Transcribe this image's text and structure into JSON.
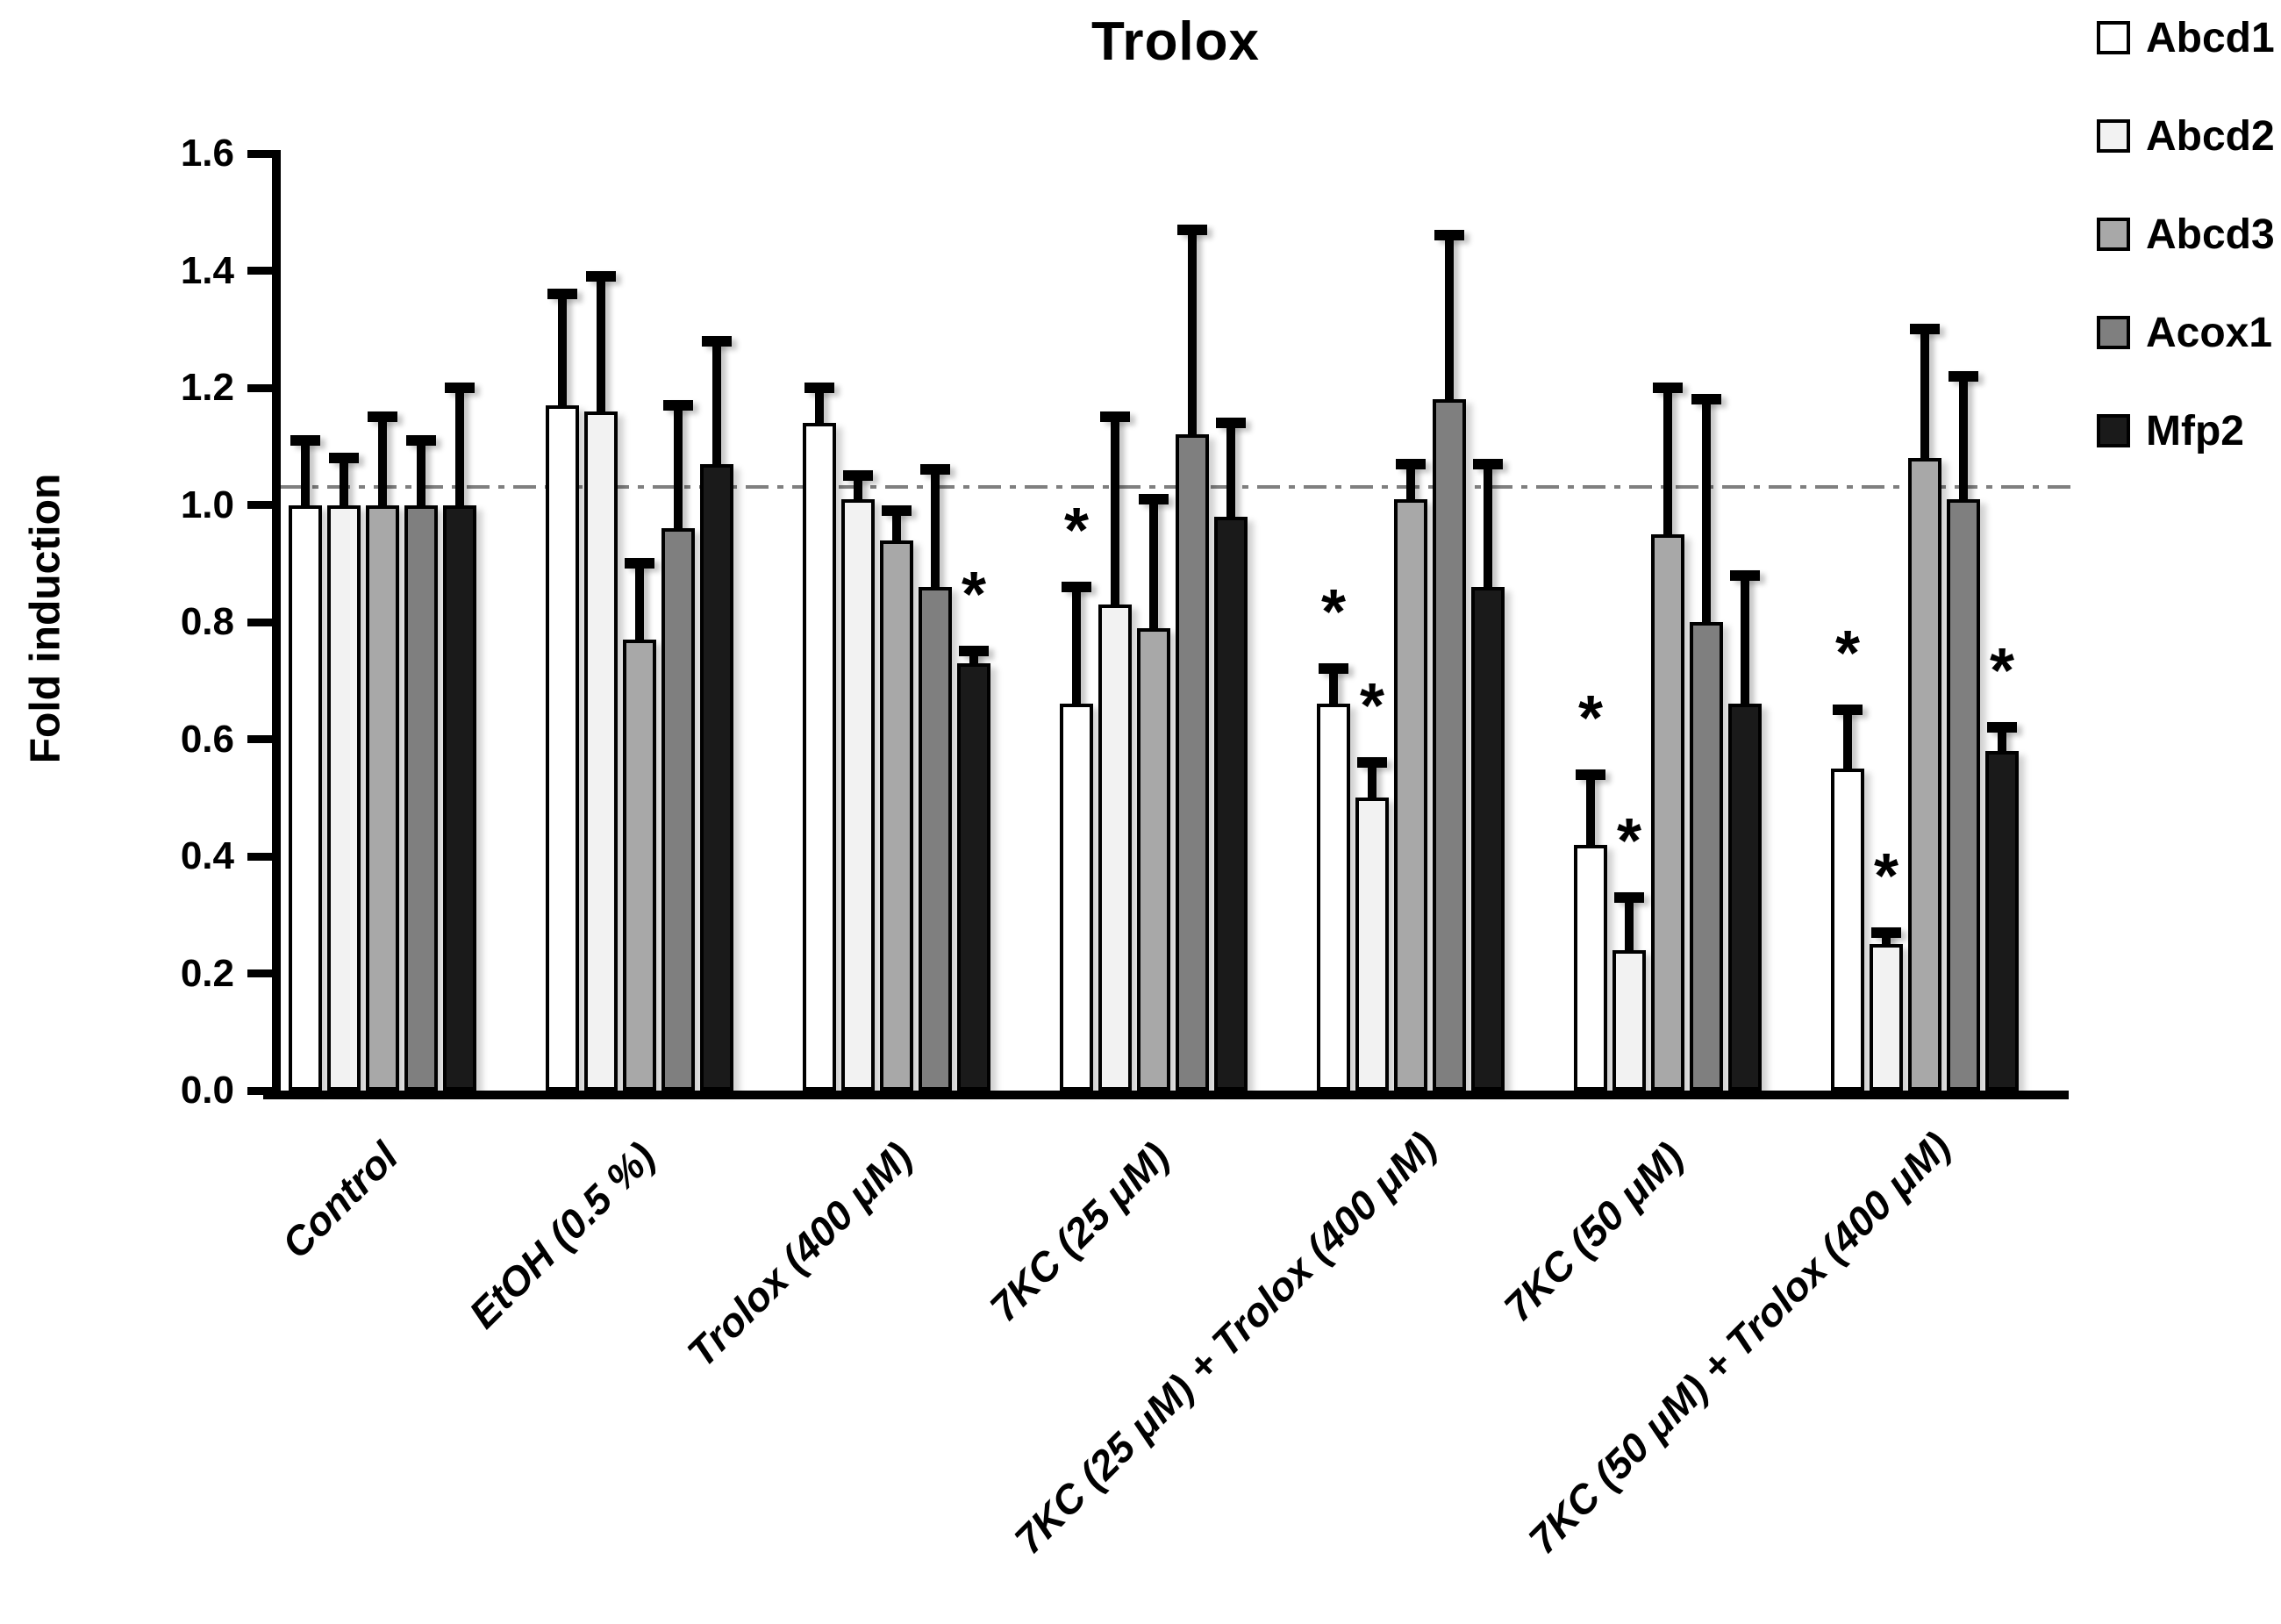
{
  "figure": {
    "title": "Trolox",
    "y_axis_title": "Fold induction",
    "background_color": "#ffffff",
    "axis_color": "#000000",
    "reference_line_color": "#7f7f7f",
    "significance_marker": "*"
  },
  "chart_data": {
    "type": "bar",
    "title": "Trolox",
    "xlabel": "",
    "ylabel": "Fold induction",
    "ylim": [
      0,
      1.6
    ],
    "ytick_labels": [
      "0.0",
      "0.2",
      "0.4",
      "0.6",
      "0.8",
      "1.0",
      "1.2",
      "1.4",
      "1.6"
    ],
    "grid": false,
    "legend_position": "upper-right-outside",
    "reference_line": {
      "value": 1.03,
      "style": "dash-dot",
      "color": "#7f7f7f"
    },
    "categories": [
      "Control",
      "EtOH  (0.5 %)",
      "Trolox (400 μM)",
      "7KC (25 μM)",
      "7KC (25 μM) + Trolox (400 μM)",
      "7KC (50 μM)",
      "7KC (50 μM) + Trolox (400 μM)"
    ],
    "series": [
      {
        "name": "Abcd1",
        "color": "#ffffff",
        "values": [
          1.0,
          1.17,
          1.14,
          0.66,
          0.66,
          0.42,
          0.55
        ],
        "errors_up": [
          0.11,
          0.19,
          0.06,
          0.2,
          0.06,
          0.12,
          0.1
        ],
        "significant": [
          false,
          false,
          false,
          true,
          true,
          true,
          true
        ]
      },
      {
        "name": "Abcd2",
        "color": "#f2f2f2",
        "values": [
          1.0,
          1.16,
          1.01,
          0.83,
          0.5,
          0.24,
          0.25
        ],
        "errors_up": [
          0.08,
          0.23,
          0.04,
          0.32,
          0.06,
          0.09,
          0.02
        ],
        "significant": [
          false,
          false,
          false,
          false,
          true,
          true,
          true
        ]
      },
      {
        "name": "Abcd3",
        "color": "#a8a8a8",
        "values": [
          1.0,
          0.77,
          0.94,
          0.79,
          1.01,
          0.95,
          1.08
        ],
        "errors_up": [
          0.15,
          0.13,
          0.05,
          0.22,
          0.06,
          0.25,
          0.22
        ],
        "significant": [
          false,
          false,
          false,
          false,
          false,
          false,
          false
        ]
      },
      {
        "name": "Acox1",
        "color": "#7f7f7f",
        "values": [
          1.0,
          0.96,
          0.86,
          1.12,
          1.18,
          0.8,
          1.01
        ],
        "errors_up": [
          0.11,
          0.21,
          0.2,
          0.35,
          0.28,
          0.38,
          0.21
        ],
        "significant": [
          false,
          false,
          false,
          false,
          false,
          false,
          false
        ]
      },
      {
        "name": "Mfp2",
        "color": "#1a1a1a",
        "values": [
          1.0,
          1.07,
          0.73,
          0.98,
          0.86,
          0.66,
          0.58
        ],
        "errors_up": [
          0.2,
          0.21,
          0.02,
          0.16,
          0.21,
          0.22,
          0.04
        ],
        "significant": [
          false,
          false,
          true,
          false,
          false,
          false,
          true
        ]
      }
    ]
  }
}
